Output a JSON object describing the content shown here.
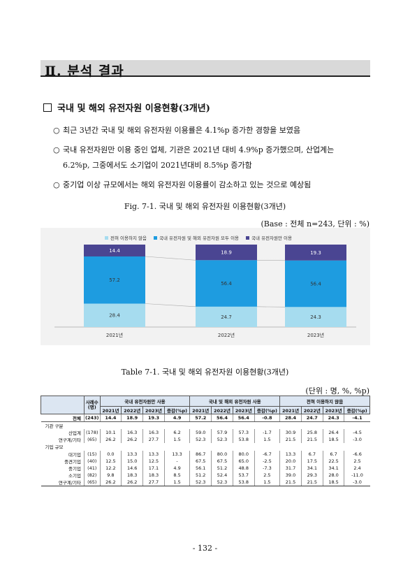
{
  "section_title": "Ⅱ. 분석 결과",
  "heading": "국내 및 해외 유전자원 이용현황(3개년)",
  "bullets": [
    {
      "marker": "○",
      "lines": [
        "최근 3년간 국내 및 해외 유전자원 이용률은 4.1%p 증가한 경향을 보였음"
      ]
    },
    {
      "marker": "○",
      "lines": [
        "국내 유전자원만 이용 중인 업체, 기관은 2021년 대비 4.9%p 증가했으며, 산업계는",
        "6.2%p, 그중에서도 소기업이 2021년대비 8.5%p 증가함"
      ]
    },
    {
      "marker": "○",
      "lines": [
        "중기업 이상 규모에서는 해외 유전자원 이용률이 감소하고 있는 것으로 예상됨"
      ]
    }
  ],
  "figure_caption": "Fig. 7-1. 국내 및 해외 유전자원 이용현황(3개년)",
  "base_note": "(Base : 전체 n=243, 단위 : %)",
  "chart_data": {
    "type": "bar",
    "stacked": true,
    "categories": [
      "2021년",
      "2022년",
      "2023년"
    ],
    "series": [
      {
        "name": "전혀 이용하지 않음",
        "values": [
          28.4,
          24.7,
          24.3
        ],
        "color": "#a6dcef"
      },
      {
        "name": "국내 유전자원 및 해외 유전자원 모두 이용",
        "values": [
          57.2,
          56.4,
          56.4
        ],
        "color": "#1e9ce0"
      },
      {
        "name": "국내 유전자원만 이용",
        "values": [
          14.4,
          18.9,
          19.3
        ],
        "color": "#4a4592"
      }
    ],
    "ylim": [
      0,
      100
    ],
    "legend_position": "top",
    "grid": false
  },
  "table_caption": "Table 7-1. 국내 및 해외 유전자원 이용현황(3개년)",
  "table_note": "(단위 : 명, %, %p)",
  "table": {
    "corner": "",
    "n_header": "사례수(명)",
    "groups": [
      "국내 유전자원만 사용",
      "국내 및 해외 유전자원 사용",
      "전혀 이용하지 않음"
    ],
    "subheaders": [
      "2021년",
      "2022년",
      "2023년",
      "증감(%p)"
    ],
    "rows": [
      {
        "type": "total",
        "label": "전체",
        "n": "(243)",
        "values": [
          "14.4",
          "18.9",
          "19.3",
          "4.9",
          "57.2",
          "56.4",
          "56.4",
          "-0.8",
          "28.4",
          "24.7",
          "24.3",
          "-4.1"
        ]
      },
      {
        "type": "group",
        "label": "기관 구분"
      },
      {
        "type": "data",
        "label": "산업계",
        "n": "(178)",
        "values": [
          "10.1",
          "16.3",
          "16.3",
          "6.2",
          "59.0",
          "57.9",
          "57.3",
          "-1.7",
          "30.9",
          "25.8",
          "26.4",
          "-4.5"
        ]
      },
      {
        "type": "data",
        "label": "연구계/기타",
        "n": "(65)",
        "values": [
          "26.2",
          "26.2",
          "27.7",
          "1.5",
          "52.3",
          "52.3",
          "53.8",
          "1.5",
          "21.5",
          "21.5",
          "18.5",
          "-3.0"
        ]
      },
      {
        "type": "group",
        "label": "기업 규모"
      },
      {
        "type": "data",
        "label": "대기업",
        "n": "(15)",
        "values": [
          "0.0",
          "13.3",
          "13.3",
          "13.3",
          "86.7",
          "80.0",
          "80.0",
          "-6.7",
          "13.3",
          "6.7",
          "6.7",
          "-6.6"
        ]
      },
      {
        "type": "data",
        "label": "중견기업",
        "n": "(40)",
        "values": [
          "12.5",
          "15.0",
          "12.5",
          "-",
          "67.5",
          "67.5",
          "65.0",
          "-2.5",
          "20.0",
          "17.5",
          "22.5",
          "2.5"
        ]
      },
      {
        "type": "data",
        "label": "중기업",
        "n": "(41)",
        "values": [
          "12.2",
          "14.6",
          "17.1",
          "4.9",
          "56.1",
          "51.2",
          "48.8",
          "-7.3",
          "31.7",
          "34.1",
          "34.1",
          "2.4"
        ]
      },
      {
        "type": "data",
        "label": "소기업",
        "n": "(82)",
        "values": [
          "9.8",
          "18.3",
          "18.3",
          "8.5",
          "51.2",
          "52.4",
          "53.7",
          "2.5",
          "39.0",
          "29.3",
          "28.0",
          "-11.0"
        ]
      },
      {
        "type": "data",
        "label": "연구계/기타",
        "n": "(65)",
        "values": [
          "26.2",
          "26.2",
          "27.7",
          "1.5",
          "52.3",
          "52.3",
          "53.8",
          "1.5",
          "21.5",
          "21.5",
          "18.5",
          "-3.0"
        ]
      }
    ]
  },
  "page_number": "- 132 -"
}
